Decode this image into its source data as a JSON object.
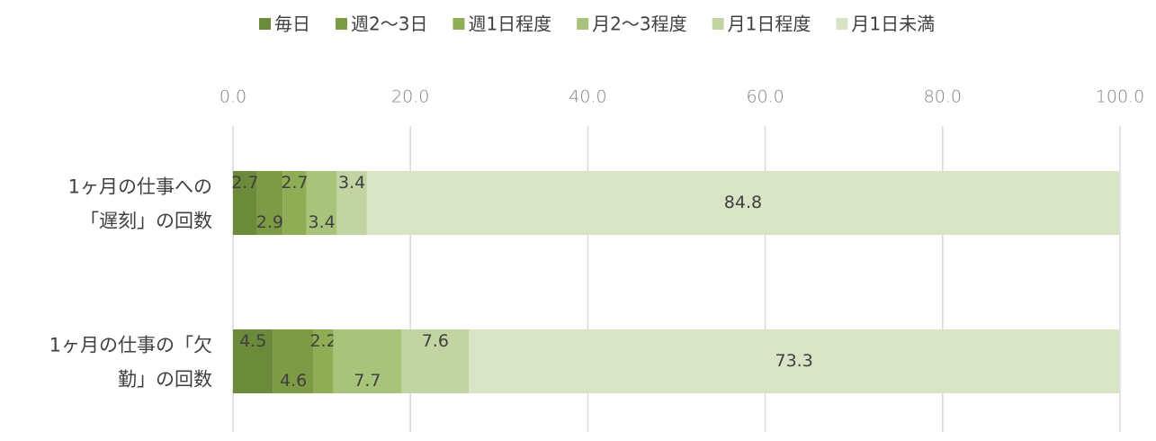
{
  "chart_data": {
    "type": "stacked_barh",
    "categories": [
      "1ヶ月の仕事への「遅刻」の回数",
      "1ヶ月の仕事の「欠勤」の回数"
    ],
    "series": [
      {
        "name": "毎日",
        "color": "#6b8a3a",
        "values": [
          2.7,
          4.5
        ]
      },
      {
        "name": "週2〜3日",
        "color": "#7d9a44",
        "values": [
          2.9,
          4.6
        ]
      },
      {
        "name": "週1日程度",
        "color": "#8fad55",
        "values": [
          2.7,
          2.2
        ]
      },
      {
        "name": "月2〜3程度",
        "color": "#a8c47a",
        "values": [
          3.4,
          7.7
        ]
      },
      {
        "name": "月1日程度",
        "color": "#c3d4a3",
        "values": [
          3.4,
          7.6
        ]
      },
      {
        "name": "月1日未満",
        "color": "#d9e4c7",
        "values": [
          84.8,
          73.3
        ]
      }
    ],
    "xlim": [
      0,
      100
    ],
    "xticks": [
      {
        "value": 0,
        "label": "0.0"
      },
      {
        "value": 20,
        "label": "20.0"
      },
      {
        "value": 40,
        "label": "40.0"
      },
      {
        "value": 60,
        "label": "60.0"
      },
      {
        "value": 80,
        "label": "80.0"
      },
      {
        "value": 100,
        "label": "100.0"
      }
    ],
    "grid": true,
    "legend": "top"
  }
}
